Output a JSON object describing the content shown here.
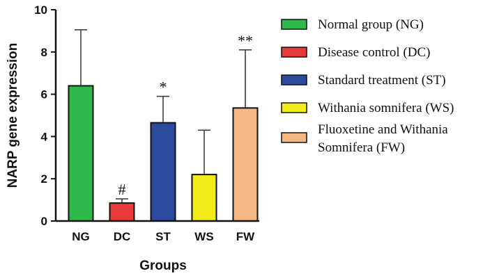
{
  "chart_data": {
    "type": "bar",
    "title": "",
    "xlabel": "Groups",
    "ylabel": "NARP gene expression",
    "ylim": [
      0,
      10
    ],
    "yticks": [
      "0",
      "2",
      "4",
      "6",
      "8",
      "10"
    ],
    "categories": [
      "NG",
      "DC",
      "ST",
      "WS",
      "FW"
    ],
    "values": [
      6.4,
      0.85,
      4.65,
      2.2,
      5.35
    ],
    "error_upper": [
      9.05,
      1.05,
      5.9,
      4.3,
      8.1
    ],
    "significance": [
      "",
      "#",
      "*",
      "",
      "**"
    ],
    "colors": [
      "#2db84a",
      "#e83a3a",
      "#2c4a9e",
      "#f2ec1a",
      "#f5b784"
    ],
    "legend": {
      "position": "right",
      "entries": [
        {
          "lines": [
            "Normal group (NG)"
          ]
        },
        {
          "lines": [
            "Disease control (DC)"
          ]
        },
        {
          "lines": [
            "Standard treatment (ST)"
          ]
        },
        {
          "lines": [
            "Withania somnifera (WS)"
          ]
        },
        {
          "lines": [
            "Fluoxetine and Withania",
            "Somnifera (FW)"
          ]
        }
      ]
    }
  }
}
